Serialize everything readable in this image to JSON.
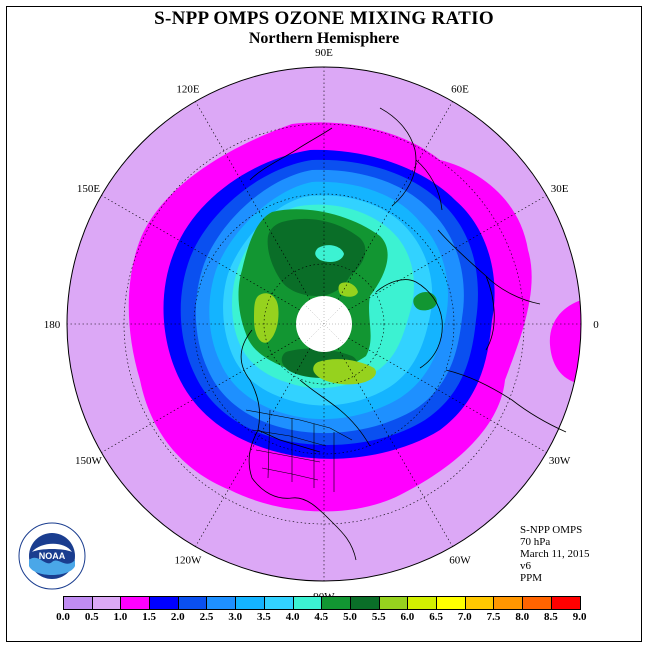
{
  "header": {
    "title": "S-NPP OMPS OZONE MIXING RATIO",
    "subtitle": "Northern Hemisphere"
  },
  "map": {
    "projection": "north-polar-stereographic",
    "longitude_labels": [
      "90E",
      "60E",
      "30E",
      "0",
      "30W",
      "60W",
      "90W",
      "120W",
      "150W",
      "180",
      "150E",
      "120E"
    ],
    "longitude_values": [
      90,
      60,
      30,
      0,
      -30,
      -60,
      -90,
      -120,
      -150,
      180,
      150,
      120
    ],
    "field_name": "ozone mixing ratio",
    "field_units": "PPM",
    "polar_night_region": "no data near pole (white)"
  },
  "info": {
    "instrument": "S-NPP OMPS",
    "level": "70 hPa",
    "date": "March 11, 2015",
    "version": "v6",
    "units": "PPM"
  },
  "legend": {
    "labels": [
      "0.0",
      "0.5",
      "1.0",
      "1.5",
      "2.0",
      "2.5",
      "3.0",
      "3.5",
      "4.0",
      "4.5",
      "5.0",
      "5.5",
      "6.0",
      "6.5",
      "7.0",
      "7.5",
      "8.0",
      "8.5",
      "9.0"
    ],
    "colors": [
      "#c08cf2",
      "#dca8f6",
      "#ff00ff",
      "#0000ff",
      "#0a50f0",
      "#1e90ff",
      "#14b4ff",
      "#32d2ff",
      "#3cf2d2",
      "#129632",
      "#0a6e28",
      "#96d21e",
      "#d2f000",
      "#ffff00",
      "#ffc800",
      "#ff9600",
      "#ff6400",
      "#ff0000",
      "#8b5a3c"
    ]
  },
  "logo": {
    "text": "NOAA",
    "ring_text": "NATIONAL OCEANIC AND ATMOSPHERIC ADMINISTRATION · U.S. DEPARTMENT OF COMMERCE"
  }
}
